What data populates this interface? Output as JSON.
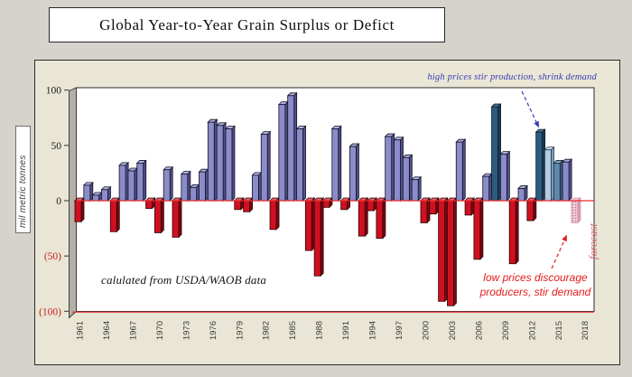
{
  "title_box": {
    "text": "Global Year-to-Year Grain Surplus or Defict"
  },
  "y_axis": {
    "title": "mil metric tonnes",
    "ticks": [
      {
        "value": 100,
        "label": "100",
        "color": "#1a1a1a"
      },
      {
        "value": 50,
        "label": "50",
        "color": "#1a1a1a"
      },
      {
        "value": 0,
        "label": "0",
        "color": "#1a1a1a"
      },
      {
        "value": -50,
        "label": "(50)",
        "color": "#cc2020"
      },
      {
        "value": -100,
        "label": "(100)",
        "color": "#cc2020"
      }
    ]
  },
  "x_axis": {
    "labeled_years": [
      1961,
      1964,
      1967,
      1970,
      1973,
      1976,
      1979,
      1982,
      1985,
      1988,
      1991,
      1994,
      1997,
      2000,
      2003,
      2006,
      2009,
      2012,
      2015,
      2018
    ]
  },
  "annotations": {
    "high_prices": "high prices stir production, shrink demand",
    "low_prices_line1": "low prices discourage",
    "low_prices_line2": "producers, stir demand",
    "source_note": "calulated from USDA/WAOB data",
    "forecast_label": "forecast"
  },
  "colors": {
    "zero_line": "#e62b2b",
    "bottom_line": "#e62b2b",
    "annotation_blue": "#3a3ab8",
    "annotation_red": "#e41c1c",
    "forecast_text": "#d4626e",
    "wall": "#b3afa7",
    "plot_background": "#ffffff",
    "chart_background": "#eae6d5",
    "page_background": "#d6d3cc",
    "bars": {
      "positive": {
        "front": "#8c8cc8",
        "top": "#b0b0de",
        "side": "#52528a",
        "stroke": "#101028"
      },
      "negative": {
        "front": "#d01020",
        "top": "#e85a64",
        "side": "#7c0812",
        "stroke": "#2a0406"
      },
      "steel_dark": {
        "front": "#2e5a7d",
        "top": "#49789c",
        "side": "#1b3a54",
        "stroke": "#0a1a28"
      },
      "steel_light": {
        "front": "#b4cbdf",
        "top": "#cedfec",
        "side": "#7e9fbd",
        "stroke": "#24384c"
      },
      "steel_medium": {
        "front": "#5e88aa",
        "top": "#7ea8c6",
        "side": "#3c5f7e",
        "stroke": "#152836"
      },
      "forecast": {
        "front": "#eeb7c4",
        "top": "#f0c4cf",
        "side": "#d895a9",
        "stroke": "#c98ba0"
      }
    }
  },
  "chart_data": {
    "type": "bar",
    "title": "Global Year-to-Year Grain Surplus or Defict",
    "xlabel": "",
    "ylabel": "mil metric tonnes",
    "ylim": [
      -100,
      100
    ],
    "grid": false,
    "legend": false,
    "x": [
      1961,
      1962,
      1963,
      1964,
      1965,
      1966,
      1967,
      1968,
      1969,
      1970,
      1971,
      1972,
      1973,
      1974,
      1975,
      1976,
      1977,
      1978,
      1979,
      1980,
      1981,
      1982,
      1983,
      1984,
      1985,
      1986,
      1987,
      1988,
      1989,
      1990,
      1991,
      1992,
      1993,
      1994,
      1995,
      1996,
      1997,
      1998,
      1999,
      2000,
      2001,
      2002,
      2003,
      2004,
      2005,
      2006,
      2007,
      2008,
      2009,
      2010,
      2011,
      2012,
      2013,
      2014,
      2015,
      2016,
      2017,
      2018
    ],
    "values": [
      -19,
      14,
      5,
      10,
      -28,
      32,
      27,
      34,
      -7,
      -29,
      28,
      -33,
      24,
      12,
      26,
      71,
      68,
      65,
      -8,
      -10,
      23,
      60,
      -26,
      87,
      95,
      65,
      -45,
      -68,
      -6,
      65,
      -8,
      49,
      -32,
      -9,
      -34,
      58,
      55,
      39,
      19,
      -20,
      -12,
      -91,
      -95,
      53,
      -13,
      -53,
      22,
      85,
      42,
      -57,
      11,
      -18,
      62,
      46,
      34,
      35,
      -20,
      null
    ],
    "bar_styles": {
      "2008": "steel_dark",
      "2013": "steel_dark",
      "2014": "steel_light",
      "2015": "steel_medium",
      "2017": "forecast"
    },
    "forecast_year": 2017
  }
}
